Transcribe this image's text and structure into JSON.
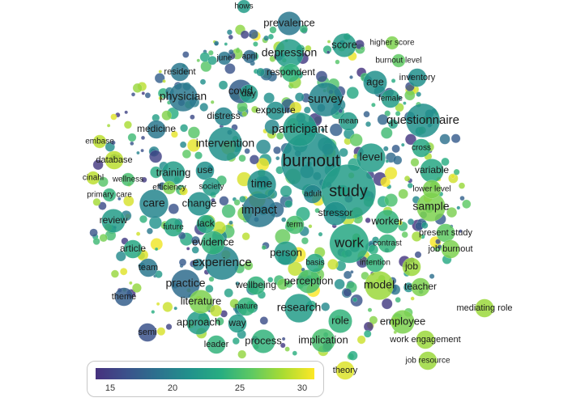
{
  "legend": {
    "ticks": [
      "15",
      "20",
      "25",
      "30"
    ],
    "min": 13.5,
    "max": 31.0,
    "colormap": [
      "#46317e",
      "#3b528b",
      "#2c728e",
      "#21918c",
      "#27ad81",
      "#5ec962",
      "#aadc32",
      "#fde725"
    ]
  },
  "terms": [
    {
      "label": "burnout",
      "value": 21,
      "weight": 10
    },
    {
      "label": "study",
      "value": 22,
      "weight": 9
    },
    {
      "label": "work",
      "value": 23,
      "weight": 6
    },
    {
      "label": "survey",
      "value": 20,
      "weight": 5
    },
    {
      "label": "participant",
      "value": 22,
      "weight": 5
    },
    {
      "label": "questionnaire",
      "value": 21,
      "weight": 5
    },
    {
      "label": "impact",
      "value": 19,
      "weight": 5
    },
    {
      "label": "experience",
      "value": 20,
      "weight": 5
    },
    {
      "label": "intervention",
      "value": 21,
      "weight": 5
    },
    {
      "label": "level",
      "value": 22,
      "weight": 4
    },
    {
      "label": "time",
      "value": 21,
      "weight": 4
    },
    {
      "label": "care",
      "value": 20,
      "weight": 4
    },
    {
      "label": "model",
      "value": 28,
      "weight": 4
    },
    {
      "label": "research",
      "value": 22,
      "weight": 4
    },
    {
      "label": "practice",
      "value": 18,
      "weight": 4
    },
    {
      "label": "physician",
      "value": 19,
      "weight": 4
    },
    {
      "label": "depression",
      "value": 22,
      "weight": 4
    },
    {
      "label": "sample",
      "value": 27,
      "weight": 4
    },
    {
      "label": "employee",
      "value": 27,
      "weight": 3
    },
    {
      "label": "implication",
      "value": 25,
      "weight": 3
    },
    {
      "label": "process",
      "value": 24,
      "weight": 3
    },
    {
      "label": "approach",
      "value": 22,
      "weight": 3
    },
    {
      "label": "perception",
      "value": 25,
      "weight": 3
    },
    {
      "label": "person",
      "value": 22,
      "weight": 3
    },
    {
      "label": "role",
      "value": 24,
      "weight": 3
    },
    {
      "label": "covid",
      "value": 17,
      "weight": 3
    },
    {
      "label": "training",
      "value": 22,
      "weight": 3
    },
    {
      "label": "change",
      "value": 21,
      "weight": 3
    },
    {
      "label": "evidence",
      "value": 24,
      "weight": 3
    },
    {
      "label": "literature",
      "value": 27,
      "weight": 3
    },
    {
      "label": "worker",
      "value": 24,
      "weight": 3
    },
    {
      "label": "stressor",
      "value": 21,
      "weight": 3
    },
    {
      "label": "review",
      "value": 22,
      "weight": 3
    },
    {
      "label": "variable",
      "value": 23,
      "weight": 3
    },
    {
      "label": "score",
      "value": 22,
      "weight": 3
    },
    {
      "label": "prevalence",
      "value": 19,
      "weight": 3
    },
    {
      "label": "age",
      "value": 21,
      "weight": 3
    },
    {
      "label": "respondent",
      "value": 24,
      "weight": 2
    },
    {
      "label": "medicine",
      "value": 19,
      "weight": 2
    },
    {
      "label": "wellbeing",
      "value": 24,
      "weight": 2
    },
    {
      "label": "lack",
      "value": 23,
      "weight": 2
    },
    {
      "label": "exposure",
      "value": 21,
      "weight": 2
    },
    {
      "label": "distress",
      "value": 20,
      "weight": 2
    },
    {
      "label": "job",
      "value": 28,
      "weight": 2
    },
    {
      "label": "teacher",
      "value": 27,
      "weight": 2
    },
    {
      "label": "use",
      "value": 21,
      "weight": 2
    },
    {
      "label": "article",
      "value": 23,
      "weight": 2
    },
    {
      "label": "way",
      "value": 22,
      "weight": 2
    },
    {
      "label": "team",
      "value": 19,
      "weight": 2
    },
    {
      "label": "theme",
      "value": 17,
      "weight": 2
    },
    {
      "label": "mean",
      "value": 22,
      "weight": 2
    },
    {
      "label": "database",
      "value": 29,
      "weight": 2
    },
    {
      "label": "day",
      "value": 22,
      "weight": 2
    },
    {
      "label": "resident",
      "value": 19,
      "weight": 2
    },
    {
      "label": "society",
      "value": 22,
      "weight": 2
    },
    {
      "label": "future",
      "value": 23,
      "weight": 2
    },
    {
      "label": "nature",
      "value": 24,
      "weight": 2
    },
    {
      "label": "leader",
      "value": 24,
      "weight": 2
    },
    {
      "label": "semi",
      "value": 16,
      "weight": 2
    },
    {
      "label": "theory",
      "value": 30,
      "weight": 2
    },
    {
      "label": "adult",
      "value": 20,
      "weight": 2
    },
    {
      "label": "term",
      "value": 25,
      "weight": 2
    },
    {
      "label": "basis",
      "value": 23,
      "weight": 2
    },
    {
      "label": "intention",
      "value": 24,
      "weight": 2
    },
    {
      "label": "contrast",
      "value": 24,
      "weight": 2
    },
    {
      "label": "female",
      "value": 22,
      "weight": 2
    },
    {
      "label": "inventory",
      "value": 21,
      "weight": 2
    },
    {
      "label": "cross",
      "value": 23,
      "weight": 2
    },
    {
      "label": "lower level",
      "value": 27,
      "weight": 2
    },
    {
      "label": "present study",
      "value": 26,
      "weight": 2
    },
    {
      "label": "job burnout",
      "value": 27,
      "weight": 2
    },
    {
      "label": "mediating role",
      "value": 28,
      "weight": 2
    },
    {
      "label": "work engagement",
      "value": 28,
      "weight": 2
    },
    {
      "label": "job resource",
      "value": 28,
      "weight": 2
    },
    {
      "label": "higher score",
      "value": 27,
      "weight": 1
    },
    {
      "label": "burnout level",
      "value": 26,
      "weight": 1
    },
    {
      "label": "june",
      "value": 19,
      "weight": 1
    },
    {
      "label": "april",
      "value": 18,
      "weight": 1
    },
    {
      "label": "hows",
      "value": 22,
      "weight": 1
    },
    {
      "label": "embase",
      "value": 29,
      "weight": 1
    },
    {
      "label": "cinahl",
      "value": 29,
      "weight": 1
    },
    {
      "label": "wellness",
      "value": 25,
      "weight": 1
    },
    {
      "label": "efficiency",
      "value": 27,
      "weight": 1
    },
    {
      "label": "primary care",
      "value": 24,
      "weight": 1
    }
  ]
}
